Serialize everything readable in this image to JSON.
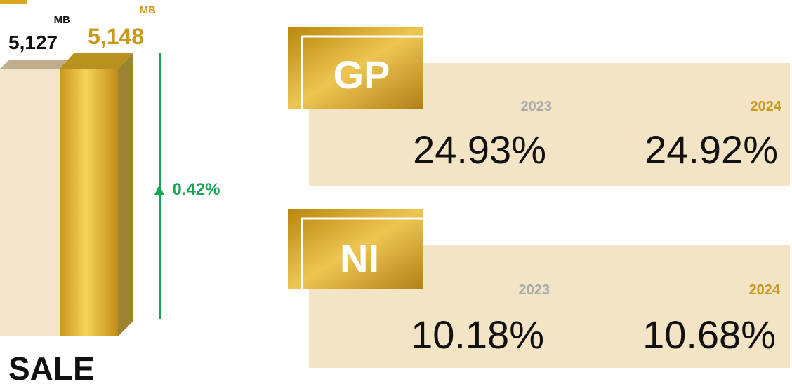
{
  "sale": {
    "label": "SALE",
    "change": "▲ 0.42%",
    "items": [
      {
        "value": "5,127",
        "unit": "MB"
      },
      {
        "value": "5,148",
        "unit": "MB"
      }
    ]
  },
  "metrics": [
    {
      "label": "GP",
      "years": [
        {
          "year": "2023",
          "value": "24.93%"
        },
        {
          "year": "2024",
          "value": "24.92%"
        }
      ]
    },
    {
      "label": "NI",
      "years": [
        {
          "year": "2023",
          "value": "10.18%"
        },
        {
          "year": "2024",
          "value": "10.68%"
        }
      ]
    }
  ]
}
